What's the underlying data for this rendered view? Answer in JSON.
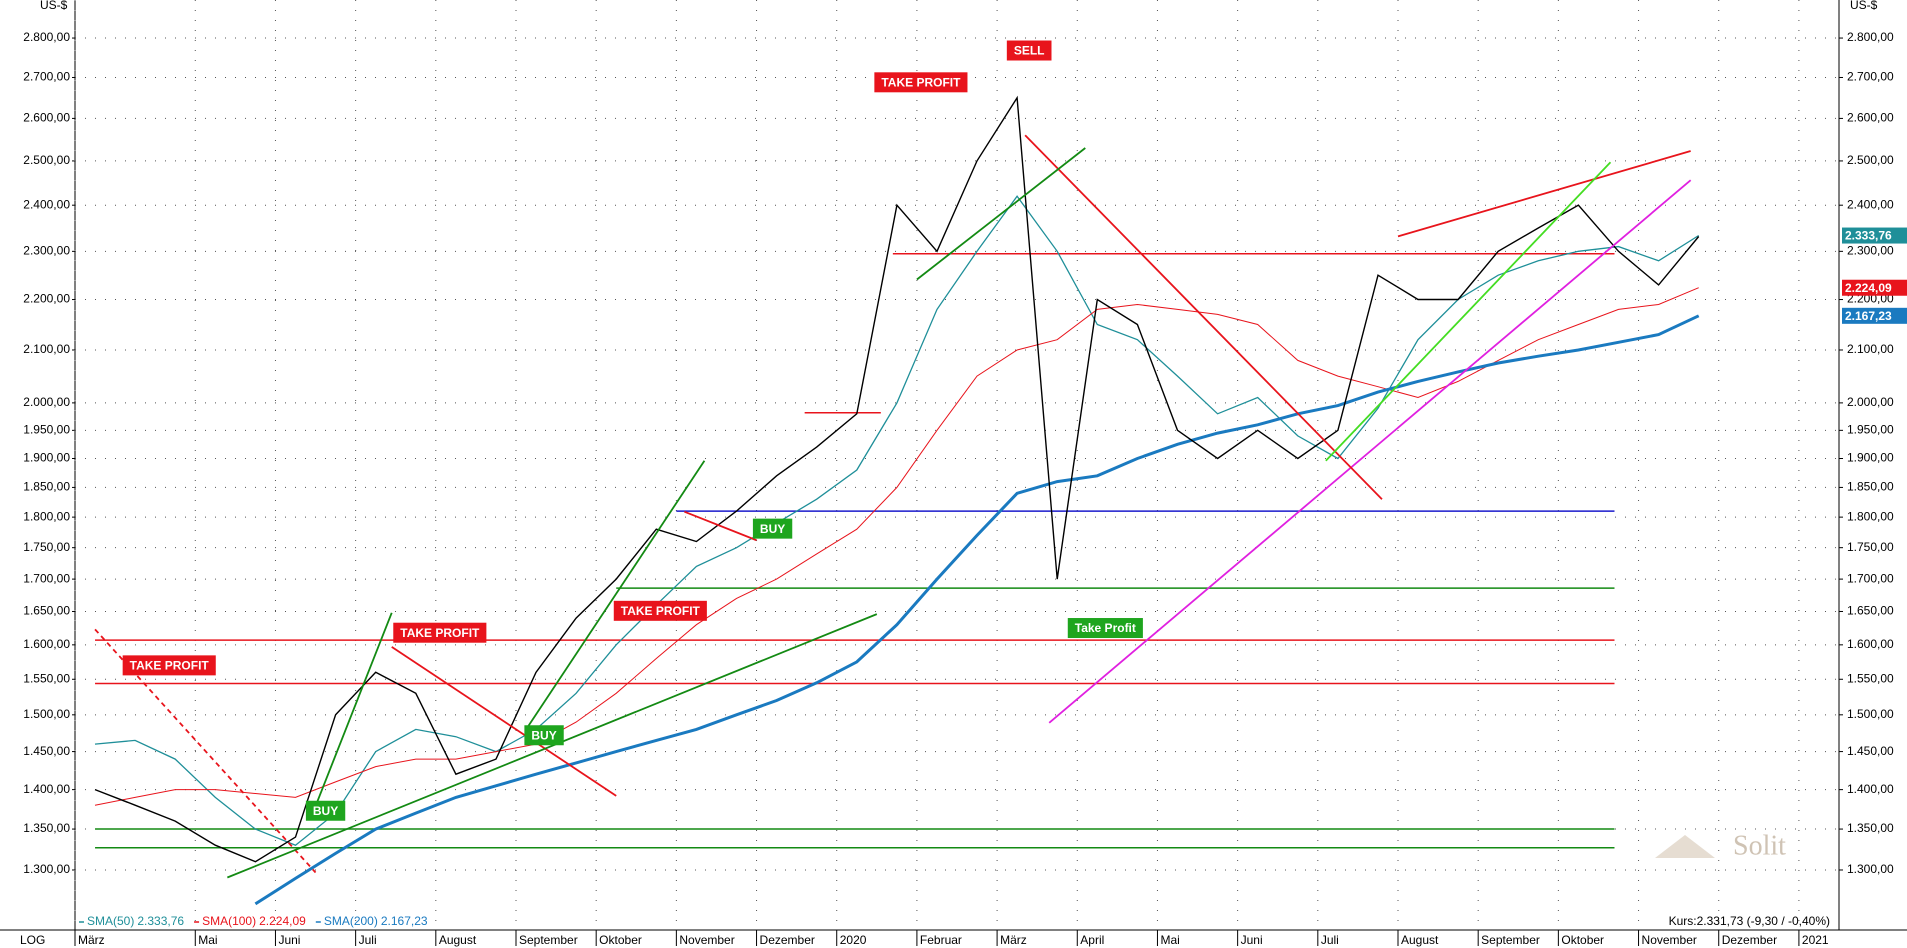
{
  "chart_data": {
    "type": "line",
    "y_unit": "US-$",
    "scale_label": "LOG",
    "log_y": true,
    "grid": true,
    "watermark": "Solit",
    "kurs": "Kurs:2.331,73 (-9,30 / -0,40%)",
    "categories": [
      "März",
      null,
      null,
      "Mai",
      null,
      "Juni",
      null,
      "Juli",
      null,
      "August",
      null,
      "September",
      null,
      "Oktober",
      null,
      "November",
      null,
      "Dezember",
      null,
      "2020",
      null,
      "Februar",
      null,
      "März",
      null,
      "April",
      null,
      "Mai",
      null,
      "Juni",
      null,
      "Juli",
      null,
      "August",
      null,
      "September",
      null,
      "Oktober",
      null,
      "November",
      null,
      "Dezember",
      null,
      "2021"
    ],
    "ylim": [
      1230,
      2900
    ],
    "yticks": [
      {
        "value": 1300,
        "label": "1.300,00"
      },
      {
        "value": 1350,
        "label": "1.350,00"
      },
      {
        "value": 1400,
        "label": "1.400,00"
      },
      {
        "value": 1450,
        "label": "1.450,00"
      },
      {
        "value": 1500,
        "label": "1.500,00"
      },
      {
        "value": 1550,
        "label": "1.550,00"
      },
      {
        "value": 1600,
        "label": "1.600,00"
      },
      {
        "value": 1650,
        "label": "1.650,00"
      },
      {
        "value": 1700,
        "label": "1.700,00"
      },
      {
        "value": 1750,
        "label": "1.750,00"
      },
      {
        "value": 1800,
        "label": "1.800,00"
      },
      {
        "value": 1850,
        "label": "1.850,00"
      },
      {
        "value": 1900,
        "label": "1.900,00"
      },
      {
        "value": 1950,
        "label": "1.950,00"
      },
      {
        "value": 2000,
        "label": "2.000,00"
      },
      {
        "value": 2100,
        "label": "2.100,00"
      },
      {
        "value": 2200,
        "label": "2.200,00"
      },
      {
        "value": 2300,
        "label": "2.300,00"
      },
      {
        "value": 2400,
        "label": "2.400,00"
      },
      {
        "value": 2500,
        "label": "2.500,00"
      },
      {
        "value": 2600,
        "label": "2.600,00"
      },
      {
        "value": 2700,
        "label": "2.700,00"
      },
      {
        "value": 2800,
        "label": "2.800,00"
      }
    ],
    "price": {
      "color": "#000000",
      "values": [
        1400,
        1380,
        1360,
        1330,
        1310,
        1340,
        1500,
        1560,
        1530,
        1420,
        1440,
        1560,
        1640,
        1700,
        1780,
        1760,
        1810,
        1870,
        1920,
        1980,
        2400,
        2300,
        2500,
        2650,
        1700,
        2200,
        2150,
        1950,
        1900,
        1950,
        1900,
        1950,
        2250,
        2200,
        2200,
        2300,
        2350,
        2400,
        2300,
        2230,
        2331.73,
        null,
        null,
        null
      ]
    },
    "series": [
      {
        "name": "SMA(50)",
        "color": "#1f8f99",
        "width": 1.3,
        "values": [
          1460,
          1465,
          1440,
          1390,
          1350,
          1330,
          1370,
          1450,
          1480,
          1470,
          1450,
          1480,
          1530,
          1600,
          1660,
          1720,
          1750,
          1790,
          1830,
          1880,
          2000,
          2180,
          2300,
          2420,
          2300,
          2150,
          2120,
          2050,
          1980,
          2010,
          1940,
          1900,
          1990,
          2120,
          2200,
          2250,
          2280,
          2300,
          2310,
          2280,
          2333.76,
          null,
          null,
          null
        ],
        "value_labels": [
          null,
          null,
          null,
          null,
          null,
          null,
          null,
          null,
          null,
          null,
          null,
          null,
          null,
          null,
          null,
          null,
          null,
          null,
          null,
          null,
          null,
          null,
          null,
          null,
          null,
          null,
          null,
          null,
          null,
          null,
          null,
          null,
          null,
          null,
          null,
          null,
          null,
          null,
          null,
          null,
          "2.333,76",
          null,
          null,
          null
        ]
      },
      {
        "name": "SMA(100)",
        "color": "#e8141c",
        "width": 1,
        "values": [
          1380,
          1390,
          1400,
          1400,
          1395,
          1390,
          1410,
          1430,
          1440,
          1440,
          1450,
          1460,
          1490,
          1530,
          1580,
          1630,
          1670,
          1700,
          1740,
          1780,
          1850,
          1950,
          2050,
          2100,
          2120,
          2180,
          2190,
          2180,
          2170,
          2150,
          2080,
          2050,
          2030,
          2010,
          2040,
          2080,
          2120,
          2150,
          2180,
          2190,
          2224.09,
          null,
          null,
          null
        ],
        "value_labels": [
          null,
          null,
          null,
          null,
          null,
          null,
          null,
          null,
          null,
          null,
          null,
          null,
          null,
          null,
          null,
          null,
          null,
          null,
          null,
          null,
          null,
          null,
          null,
          null,
          null,
          null,
          null,
          null,
          null,
          null,
          null,
          null,
          null,
          null,
          null,
          null,
          null,
          null,
          null,
          null,
          "2.224,09",
          null,
          null,
          null
        ]
      },
      {
        "name": "SMA(200)",
        "color": "#1a7ac0",
        "width": 3,
        "values": [
          null,
          null,
          null,
          null,
          1260,
          1290,
          1320,
          1350,
          1370,
          1390,
          1405,
          1420,
          1435,
          1450,
          1465,
          1480,
          1500,
          1520,
          1545,
          1575,
          1630,
          1700,
          1770,
          1840,
          1860,
          1870,
          1900,
          1925,
          1945,
          1960,
          1980,
          1995,
          2020,
          2040,
          2058,
          2075,
          2088,
          2100,
          2115,
          2130,
          2167.23,
          null,
          null,
          null
        ],
        "value_labels": [
          null,
          null,
          null,
          null,
          null,
          null,
          null,
          null,
          null,
          null,
          null,
          null,
          null,
          null,
          null,
          null,
          null,
          null,
          null,
          null,
          null,
          null,
          null,
          null,
          null,
          null,
          null,
          null,
          null,
          null,
          null,
          null,
          null,
          null,
          null,
          null,
          null,
          null,
          null,
          null,
          "2.167,23",
          null,
          null,
          null
        ]
      }
    ],
    "levels": [
      {
        "value": 2295,
        "from": 19.9,
        "to": 37.9,
        "color": "#e8141c"
      },
      {
        "value": 1982,
        "from": 17.7,
        "to": 19.6,
        "color": "#e8141c"
      },
      {
        "value": 1810,
        "from": 14.5,
        "to": 37.9,
        "color": "#1a1acc"
      },
      {
        "value": 1686,
        "from": 13,
        "to": 37.9,
        "color": "#138a13"
      },
      {
        "value": 1607,
        "from": 0,
        "to": 37.9,
        "color": "#e8141c"
      },
      {
        "value": 1544,
        "from": 0,
        "to": 37.9,
        "color": "#e8141c"
      },
      {
        "value": 1350,
        "from": 0,
        "to": 37.9,
        "color": "#138a13"
      },
      {
        "value": 1327,
        "from": 0,
        "to": 37.9,
        "color": "#138a13"
      }
    ],
    "trendlines": [
      {
        "x": [
          23.8,
          39.8
        ],
        "y": [
          1489,
          2456
        ],
        "color": "#e020e0"
      },
      {
        "x": [
          32.5,
          39.8
        ],
        "y": [
          2332,
          2523
        ],
        "color": "#e8141c"
      },
      {
        "x": [
          23.2,
          32.1
        ],
        "y": [
          2560,
          1830
        ],
        "color": "#e8141c"
      },
      {
        "x": [
          7.4,
          13
        ],
        "y": [
          1597,
          1392
        ],
        "color": "#e8141c"
      },
      {
        "x": [
          0,
          5.5
        ],
        "y": [
          1623,
          1297
        ],
        "color": "#e8141c",
        "dashed": true
      },
      {
        "x": [
          3.3,
          19.5
        ],
        "y": [
          1291,
          1646
        ],
        "color": "#138a13"
      },
      {
        "x": [
          20.5,
          24.7
        ],
        "y": [
          2241,
          2530
        ],
        "color": "#138a13"
      },
      {
        "x": [
          10.8,
          15.2
        ],
        "y": [
          1484,
          1896
        ],
        "color": "#138a13"
      },
      {
        "x": [
          30.7,
          37.8
        ],
        "y": [
          1896,
          2497
        ],
        "color": "#44dd22"
      },
      {
        "x": [
          5.4,
          7.4
        ],
        "y": [
          1366,
          1648
        ],
        "color": "#138a13"
      },
      {
        "x": [
          14.7,
          16.5
        ],
        "y": [
          1809,
          1762
        ],
        "color": "#e8141c"
      }
    ],
    "annotations": [
      {
        "text": "TAKE PROFIT",
        "x": 1.85,
        "y": 1570,
        "color": "#e8141c"
      },
      {
        "text": "TAKE PROFIT",
        "x": 8.6,
        "y": 1618,
        "color": "#e8141c"
      },
      {
        "text": "TAKE PROFIT",
        "x": 14.1,
        "y": 1651,
        "color": "#e8141c"
      },
      {
        "text": "TAKE PROFIT",
        "x": 20.6,
        "y": 2688,
        "color": "#e8141c"
      },
      {
        "text": "SELL",
        "x": 23.3,
        "y": 2768,
        "color": "#e8141c"
      },
      {
        "text": "BUY",
        "x": 5.75,
        "y": 1373,
        "color": "#1ea51e"
      },
      {
        "text": "BUY",
        "x": 11.2,
        "y": 1472,
        "color": "#1ea51e"
      },
      {
        "text": "BUY",
        "x": 16.9,
        "y": 1781,
        "color": "#1ea51e"
      },
      {
        "text": "Take Profit",
        "x": 25.2,
        "y": 1625,
        "color": "#1ea51e"
      }
    ]
  }
}
